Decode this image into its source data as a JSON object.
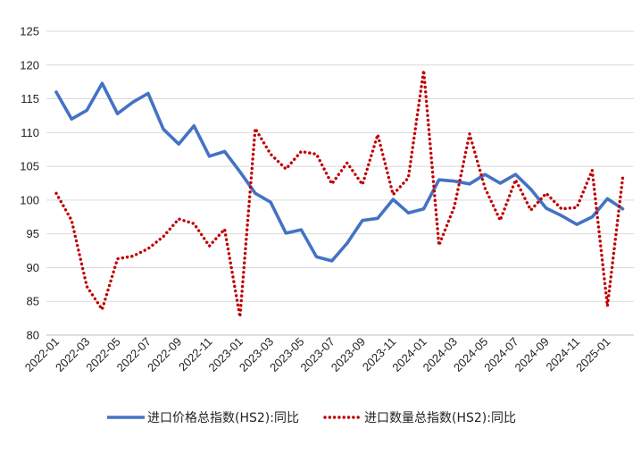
{
  "chart_data": {
    "type": "line",
    "title": "",
    "xlabel": "",
    "ylabel": "",
    "ylim": [
      80,
      125
    ],
    "y_ticks": [
      80,
      85,
      90,
      95,
      100,
      105,
      110,
      115,
      120,
      125
    ],
    "grid": "horizontal",
    "legend_position": "bottom",
    "x": [
      "2022-01",
      "2022-02",
      "2022-03",
      "2022-04",
      "2022-05",
      "2022-06",
      "2022-07",
      "2022-08",
      "2022-09",
      "2022-10",
      "2022-11",
      "2022-12",
      "2023-01",
      "2023-02",
      "2023-03",
      "2023-04",
      "2023-05",
      "2023-06",
      "2023-07",
      "2023-08",
      "2023-09",
      "2023-10",
      "2023-11",
      "2023-12",
      "2024-01",
      "2024-02",
      "2024-03",
      "2024-04",
      "2024-05",
      "2024-06",
      "2024-07",
      "2024-08",
      "2024-09",
      "2024-10",
      "2024-11",
      "2024-12",
      "2025-01",
      "2025-02"
    ],
    "x_tick_labels": [
      "2022-01",
      "2022-03",
      "2022-05",
      "2022-07",
      "2022-09",
      "2022-11",
      "2023-01",
      "2023-03",
      "2023-05",
      "2023-07",
      "2023-09",
      "2023-11",
      "2024-01",
      "2024-03",
      "2024-05",
      "2024-07",
      "2024-09",
      "2024-11",
      "2025-01"
    ],
    "series": [
      {
        "name": "进口价格总指数(HS2):同比",
        "color": "#4472C4",
        "style": "solid",
        "values": [
          116.0,
          112.0,
          113.3,
          117.3,
          112.8,
          114.5,
          115.8,
          110.5,
          108.3,
          111.0,
          106.5,
          107.2,
          104.2,
          101.0,
          99.7,
          95.1,
          95.6,
          91.6,
          91.0,
          93.6,
          97.0,
          97.3,
          100.1,
          98.1,
          98.7,
          103.0,
          102.8,
          102.4,
          103.8,
          102.5,
          103.8,
          101.6,
          98.8,
          97.7,
          96.4,
          97.5,
          100.2,
          98.7
        ]
      },
      {
        "name": "进口数量总指数(HS2):同比",
        "color": "#C00000",
        "style": "dotted",
        "values": [
          101.0,
          97.0,
          87.2,
          83.8,
          91.3,
          91.7,
          92.8,
          94.6,
          97.2,
          96.5,
          93.2,
          95.7,
          82.7,
          110.6,
          106.8,
          104.6,
          107.2,
          106.8,
          102.4,
          105.5,
          102.3,
          109.7,
          100.8,
          103.3,
          119.2,
          93.3,
          99.0,
          109.8,
          101.8,
          97.0,
          103.0,
          98.5,
          101.0,
          98.7,
          98.9,
          104.4,
          84.3,
          103.3
        ]
      }
    ]
  }
}
